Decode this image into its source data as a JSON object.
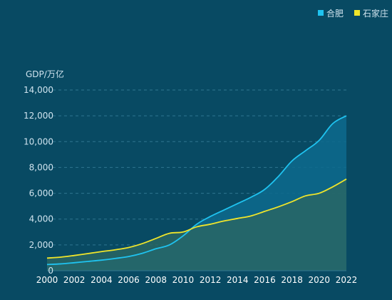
{
  "chart_data": {
    "type": "area",
    "title": "",
    "xlabel": "",
    "ylabel": "GDP/万亿",
    "x": [
      2000,
      2001,
      2002,
      2003,
      2004,
      2005,
      2006,
      2007,
      2008,
      2009,
      2010,
      2011,
      2012,
      2013,
      2014,
      2015,
      2016,
      2017,
      2018,
      2019,
      2020,
      2021,
      2022
    ],
    "x_ticks": [
      "2000",
      "2002",
      "2004",
      "2006",
      "2008",
      "2010",
      "2012",
      "2014",
      "2016",
      "2018",
      "2020",
      "2022"
    ],
    "y_ticks": [
      "0",
      "2,000",
      "4,000",
      "6,000",
      "8,000",
      "10,000",
      "12,000",
      "14,000"
    ],
    "ylim": [
      0,
      14000
    ],
    "grid": true,
    "legend_position": "top-right",
    "series": [
      {
        "name": "合肥",
        "color": "#1fc3f0",
        "fill": "#0d6a8d",
        "values": [
          480,
          530,
          620,
          720,
          820,
          950,
          1100,
          1350,
          1700,
          2000,
          2700,
          3600,
          4200,
          4700,
          5200,
          5700,
          6300,
          7300,
          8500,
          9300,
          10100,
          11400,
          12000
        ]
      },
      {
        "name": "石家庄",
        "color": "#f0e52a",
        "fill": "#2a6663",
        "values": [
          980,
          1050,
          1180,
          1330,
          1480,
          1620,
          1800,
          2100,
          2500,
          2900,
          3000,
          3400,
          3600,
          3850,
          4050,
          4250,
          4600,
          4950,
          5350,
          5800,
          6000,
          6500,
          7100
        ]
      }
    ]
  }
}
